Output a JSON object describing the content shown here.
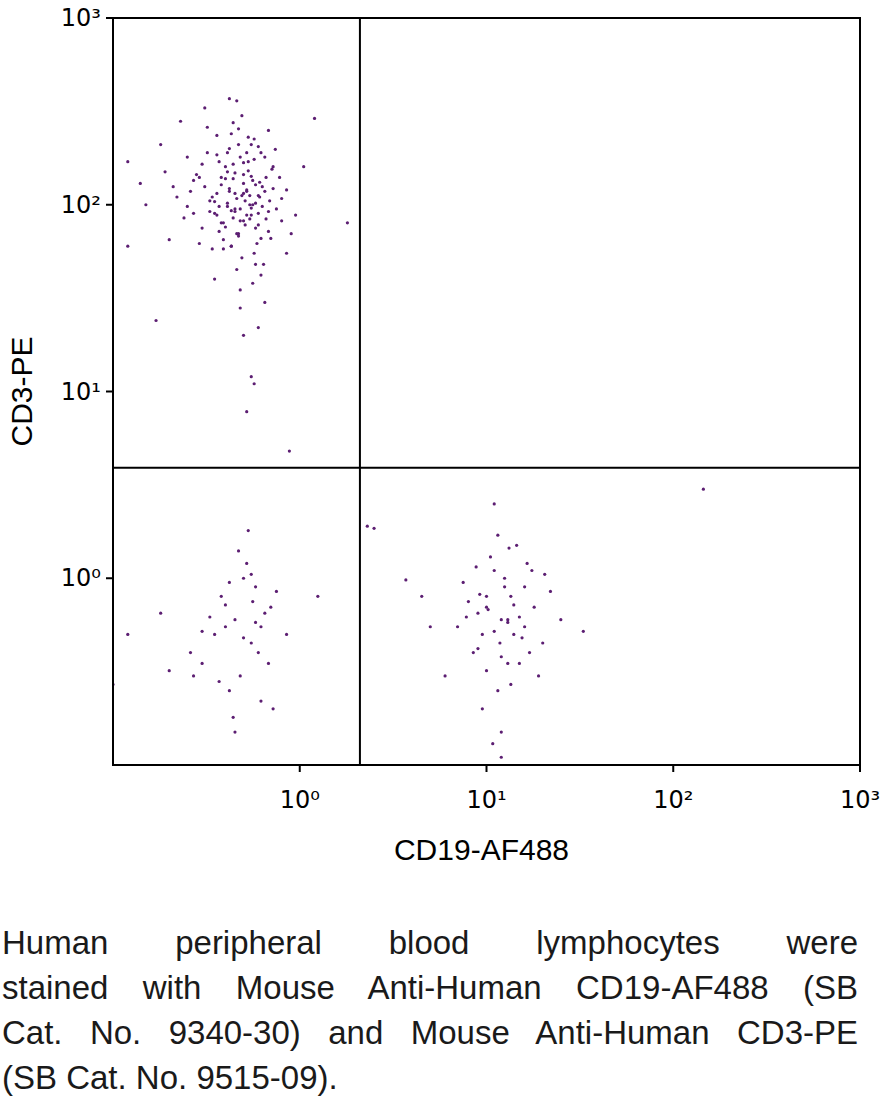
{
  "chart_data": {
    "type": "scatter",
    "x_label": "CD19-AF488",
    "y_label": "CD3-PE",
    "caption": [
      "Human peripheral blood lymphocytes were",
      "stained with Mouse Anti-Human CD19-AF488 (SB",
      "Cat. No. 9340-30) and Mouse Anti-Human CD3-PE",
      "(SB Cat. No. 9515-09)."
    ],
    "log": true,
    "color": "#5c1e72",
    "marker": "dot",
    "xlim": [
      0.1,
      1000
    ],
    "ylim": [
      0.1,
      1000
    ],
    "xticks": [
      {
        "value": 1,
        "label": "10⁰"
      },
      {
        "value": 10,
        "label": "10¹"
      },
      {
        "value": 100,
        "label": "10²"
      },
      {
        "value": 1000,
        "label": "10³"
      }
    ],
    "yticks": [
      {
        "value": 1,
        "label": "10⁰"
      },
      {
        "value": 10,
        "label": "10¹"
      },
      {
        "value": 100,
        "label": "10²"
      },
      {
        "value": 1000,
        "label": "10³"
      }
    ],
    "quadrant_gates": {
      "x": 2.1,
      "y": 3.9
    },
    "x": [
      0.45,
      0.52,
      0.38,
      0.61,
      0.29,
      0.47,
      0.55,
      0.41,
      0.33,
      0.68,
      0.5,
      0.43,
      0.36,
      0.58,
      0.72,
      0.25,
      0.48,
      0.63,
      0.39,
      0.54,
      0.44,
      0.31,
      0.57,
      0.66,
      0.49,
      0.35,
      0.42,
      0.6,
      0.53,
      0.27,
      0.46,
      0.51,
      0.4,
      0.75,
      0.22,
      0.62,
      0.37,
      0.56,
      0.48,
      0.34,
      0.85,
      0.19,
      0.43,
      0.59,
      0.52,
      0.3,
      0.69,
      0.45,
      0.38,
      0.64,
      0.55,
      0.47,
      0.26,
      0.8,
      0.41,
      0.5,
      0.36,
      0.58,
      0.33,
      0.71,
      0.15,
      0.49,
      0.44,
      0.65,
      0.39,
      0.53,
      0.28,
      0.6,
      0.46,
      0.9,
      0.42,
      0.57,
      0.35,
      0.48,
      0.62,
      0.32,
      0.54,
      0.4,
      0.74,
      0.24,
      0.51,
      0.45,
      0.37,
      0.68,
      0.21,
      0.56,
      0.43,
      0.95,
      0.3,
      0.5,
      0.12,
      0.61,
      0.47,
      0.39,
      0.55,
      0.78,
      0.34,
      0.44,
      0.66,
      0.52,
      0.18,
      0.48,
      0.58,
      0.41,
      0.29,
      0.63,
      0.53,
      0.36,
      0.46,
      1.05,
      0.85,
      0.23,
      0.42,
      0.5,
      0.6,
      0.38,
      0.7,
      0.45,
      0.32,
      0.57,
      0.14,
      0.54,
      0.4,
      0.65,
      0.49,
      0.27,
      0.58,
      0.44,
      0.35,
      0.8,
      0.47,
      0.52,
      0.2,
      0.62,
      0.37,
      0.43,
      0.72,
      0.31,
      0.56,
      0.41,
      0.12,
      0.55,
      0.48,
      0.36,
      0.68,
      0.46,
      0.25,
      0.6,
      0.5,
      1.2,
      0.5,
      0.55,
      0.57,
      0.52,
      1.8,
      0.88,
      0.42,
      0.6,
      0.17,
      0.65,
      0.45,
      0.55,
      0.38,
      0.62,
      0.5,
      0.3,
      0.7,
      0.42,
      0.58,
      0.35,
      0.48,
      0.65,
      0.26,
      0.52,
      0.4,
      0.75,
      0.33,
      0.6,
      0.44,
      0.2,
      0.56,
      0.47,
      0.85,
      0.37,
      0.62,
      0.18,
      0.5,
      0.42,
      0.68,
      0.3,
      0.12,
      0.53,
      1.25,
      0.45,
      0.27,
      0.58,
      0.72,
      0.4,
      0.55,
      0.1,
      12,
      10,
      14,
      8.5,
      16,
      11,
      13,
      9,
      18,
      7,
      11.5,
      15,
      10.5,
      20,
      6,
      13.5,
      9.5,
      12.5,
      17,
      8,
      14.5,
      11,
      22,
      10,
      13,
      7.5,
      16.5,
      12,
      9,
      19,
      4.5,
      25,
      11.5,
      13.5,
      10,
      15.5,
      8.8,
      12,
      5,
      33,
      12.5,
      10.8,
      14,
      9.5,
      2.3,
      2.5,
      3.7,
      11,
      17.5,
      13,
      145,
      9.2,
      15,
      11.8,
      7.8,
      20.5,
      13.2,
      10.2,
      16,
      12
    ],
    "values": [
      95,
      120,
      80,
      110,
      140,
      70,
      88,
      150,
      105,
      92,
      130,
      60,
      115,
      75,
      160,
      98,
      180,
      125,
      65,
      100,
      85,
      125,
      55,
      140,
      112,
      90,
      200,
      78,
      170,
      135,
      45,
      105,
      160,
      95,
      110,
      190,
      72,
      135,
      82,
      58,
      120,
      150,
      240,
      62,
      88,
      75,
      105,
      115,
      128,
      48,
      210,
      68,
      118,
      82,
      98,
      145,
      185,
      102,
      92,
      155,
      100,
      52,
      165,
      118,
      80,
      230,
      145,
      90,
      108,
      70,
      122,
      175,
      40,
      95,
      66,
      260,
      112,
      138,
      198,
      85,
      78,
      148,
      98,
      250,
      125,
      38,
      60,
      88,
      165,
      115,
      170,
      132,
      210,
      58,
      96,
      140,
      110,
      275,
      84,
      190,
      210,
      35,
      128,
      102,
      62,
      98,
      152,
      235,
      70,
      160,
      55,
      280,
      118,
      168,
      112,
      140,
      66,
      92,
      190,
      225,
      130,
      84,
      76,
      180,
      300,
      90,
      48,
      138,
      104,
      108,
      255,
      118,
      65,
      42,
      170,
      93,
      122,
      330,
      100,
      190,
      60,
      142,
      28,
      88,
      72,
      360,
      180,
      205,
      82,
      290,
      20,
      12,
      11,
      7.8,
      80,
      4.8,
      370,
      22,
      24,
      30,
      0.6,
      0.45,
      0.8,
      0.55,
      1.0,
      0.35,
      0.7,
      0.25,
      0.9,
      0.5,
      0.3,
      0.65,
      0.4,
      1.2,
      0.55,
      0.85,
      0.62,
      0.4,
      0.18,
      0.32,
      0.75,
      1.4,
      0.5,
      0.28,
      0.22,
      0.65,
      0.48,
      0.95,
      0.35,
      0.52,
      0.5,
      1.8,
      0.8,
      0.15,
      0.3,
      0.58,
      0.2,
      0.72,
      1.05,
      0.27,
      0.6,
      0.8,
      0.5,
      0.4,
      0.9,
      1.1,
      0.35,
      0.65,
      0.7,
      0.55,
      0.25,
      0.62,
      1.3,
      0.45,
      0.3,
      0.8,
      0.2,
      1.0,
      0.4,
      0.75,
      1.5,
      0.52,
      0.85,
      0.32,
      0.58,
      0.95,
      1.2,
      0.15,
      0.42,
      0.3,
      0.8,
      0.6,
      1.7,
      0.27,
      0.7,
      0.48,
      1.15,
      0.38,
      0.55,
      0.52,
      0.9,
      0.13,
      0.72,
      0.5,
      1.9,
      1.85,
      0.98,
      2.5,
      1.1,
      0.6,
      3.0,
      0.82,
      0.35,
      0.45,
      0.62,
      1.05,
      1.45,
      0.68,
      0.55,
      0.11
    ]
  }
}
